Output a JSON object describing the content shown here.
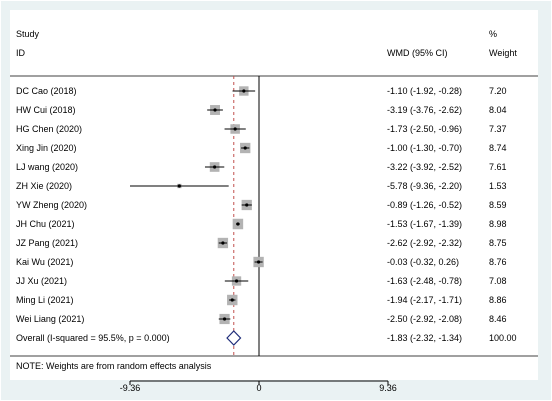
{
  "header": {
    "study_label": "Study",
    "id_label": "ID",
    "effect_label": "WMD (95% CI)",
    "pct_label": "%",
    "weight_label": "Weight"
  },
  "note": "NOTE: Weights are from random effects analysis",
  "colors": {
    "background": "#eaf2f3",
    "panel": "#ffffff",
    "weight_box": "#b3b3b3",
    "overall_line": "#c0504d",
    "diamond": "#1f2d7a"
  },
  "chart_data": {
    "type": "forest",
    "x_ticks": [
      -9.36,
      0,
      9.36
    ],
    "x_tick_labels": [
      "-9.36",
      "0",
      "9.36"
    ],
    "xlim": [
      -9.36,
      9.36
    ],
    "null_value": 0,
    "studies": [
      {
        "id": "DC Cao (2018)",
        "wmd": -1.1,
        "lo": -1.92,
        "hi": -0.28,
        "ci_label": "-1.10 (-1.92, -0.28)",
        "weight": 7.2,
        "weight_label": "7.20"
      },
      {
        "id": "HW Cui (2018)",
        "wmd": -3.19,
        "lo": -3.76,
        "hi": -2.62,
        "ci_label": "-3.19 (-3.76, -2.62)",
        "weight": 8.04,
        "weight_label": "8.04"
      },
      {
        "id": "HG Chen (2020)",
        "wmd": -1.73,
        "lo": -2.5,
        "hi": -0.96,
        "ci_label": "-1.73 (-2.50, -0.96)",
        "weight": 7.37,
        "weight_label": "7.37"
      },
      {
        "id": "Xing Jin (2020)",
        "wmd": -1.0,
        "lo": -1.3,
        "hi": -0.7,
        "ci_label": "-1.00 (-1.30, -0.70)",
        "weight": 8.74,
        "weight_label": "8.74"
      },
      {
        "id": "LJ wang (2020)",
        "wmd": -3.22,
        "lo": -3.92,
        "hi": -2.52,
        "ci_label": "-3.22 (-3.92, -2.52)",
        "weight": 7.61,
        "weight_label": "7.61"
      },
      {
        "id": "ZH Xie (2020)",
        "wmd": -5.78,
        "lo": -9.36,
        "hi": -2.2,
        "ci_label": "-5.78 (-9.36, -2.20)",
        "weight": 1.53,
        "weight_label": "1.53"
      },
      {
        "id": "YW Zheng (2020)",
        "wmd": -0.89,
        "lo": -1.26,
        "hi": -0.52,
        "ci_label": "-0.89 (-1.26, -0.52)",
        "weight": 8.59,
        "weight_label": "8.59"
      },
      {
        "id": "JH Chu (2021)",
        "wmd": -1.53,
        "lo": -1.67,
        "hi": -1.39,
        "ci_label": "-1.53 (-1.67, -1.39)",
        "weight": 8.98,
        "weight_label": "8.98"
      },
      {
        "id": "JZ Pang (2021)",
        "wmd": -2.62,
        "lo": -2.92,
        "hi": -2.32,
        "ci_label": "-2.62 (-2.92, -2.32)",
        "weight": 8.75,
        "weight_label": "8.75"
      },
      {
        "id": "Kai Wu (2021)",
        "wmd": -0.03,
        "lo": -0.32,
        "hi": 0.26,
        "ci_label": "-0.03 (-0.32, 0.26)",
        "weight": 8.76,
        "weight_label": "8.76"
      },
      {
        "id": "JJ Xu (2021)",
        "wmd": -1.63,
        "lo": -2.48,
        "hi": -0.78,
        "ci_label": "-1.63 (-2.48, -0.78)",
        "weight": 7.08,
        "weight_label": "7.08"
      },
      {
        "id": "Ming Li (2021)",
        "wmd": -1.94,
        "lo": -2.17,
        "hi": -1.71,
        "ci_label": "-1.94 (-2.17, -1.71)",
        "weight": 8.86,
        "weight_label": "8.86"
      },
      {
        "id": "Wei Liang (2021)",
        "wmd": -2.5,
        "lo": -2.92,
        "hi": -2.08,
        "ci_label": "-2.50 (-2.92, -2.08)",
        "weight": 8.46,
        "weight_label": "8.46"
      }
    ],
    "overall": {
      "label": "Overall  (I-squared = 95.5%, p = 0.000)",
      "wmd": -1.83,
      "lo": -2.32,
      "hi": -1.34,
      "ci_label": "-1.83 (-2.32, -1.34)",
      "weight_label": "100.00"
    }
  }
}
